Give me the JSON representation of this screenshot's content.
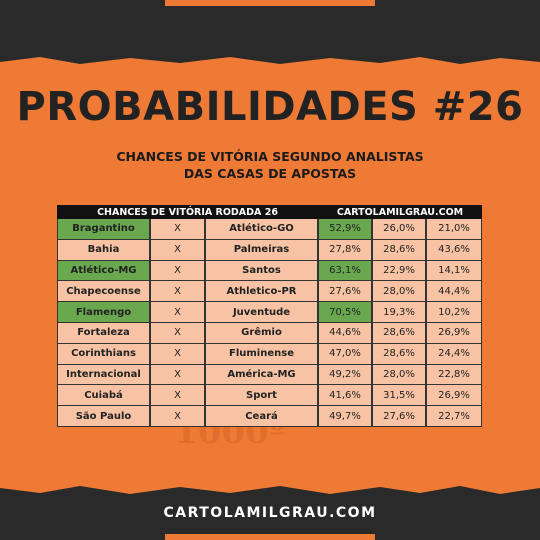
{
  "header": {
    "title": "PROBABILIDADES #26",
    "subtitle_lines": [
      "CHANCES DE VITÓRIA SEGUNDO ANALISTAS",
      "DAS CASAS DE APOSTAS"
    ]
  },
  "watermark": "1000º",
  "table": {
    "header": [
      "CHANCES DE VITÓRIA RODADA 26",
      "CARTOLAMILGRAU.COM"
    ],
    "highlight_color": "#6aa84f",
    "highlighted_rows": [
      0,
      2,
      4
    ],
    "rows": [
      [
        "Bragantino",
        "X",
        "Atlético-GO",
        "52,9%",
        "26,0%",
        "21,0%"
      ],
      [
        "Bahia",
        "X",
        "Palmeiras",
        "27,8%",
        "28,6%",
        "43,6%"
      ],
      [
        "Atlético-MG",
        "X",
        "Santos",
        "63,1%",
        "22,9%",
        "14,1%"
      ],
      [
        "Chapecoense",
        "X",
        "Athletico-PR",
        "27,6%",
        "28,0%",
        "44,4%"
      ],
      [
        "Flamengo",
        "X",
        "Juventude",
        "70,5%",
        "19,3%",
        "10,2%"
      ],
      [
        "Fortaleza",
        "X",
        "Grêmio",
        "44,6%",
        "28,6%",
        "26,9%"
      ],
      [
        "Corinthians",
        "X",
        "Fluminense",
        "47,0%",
        "28,6%",
        "24,4%"
      ],
      [
        "Internacional",
        "X",
        "América-MG",
        "49,2%",
        "28,0%",
        "22,8%"
      ],
      [
        "Cuiabá",
        "X",
        "Sport",
        "41,6%",
        "31,5%",
        "26,9%"
      ],
      [
        "São Paulo",
        "X",
        "Ceará",
        "49,7%",
        "27,6%",
        "22,7%"
      ]
    ]
  },
  "footer": "CARTOLAMILGRAU.COM"
}
